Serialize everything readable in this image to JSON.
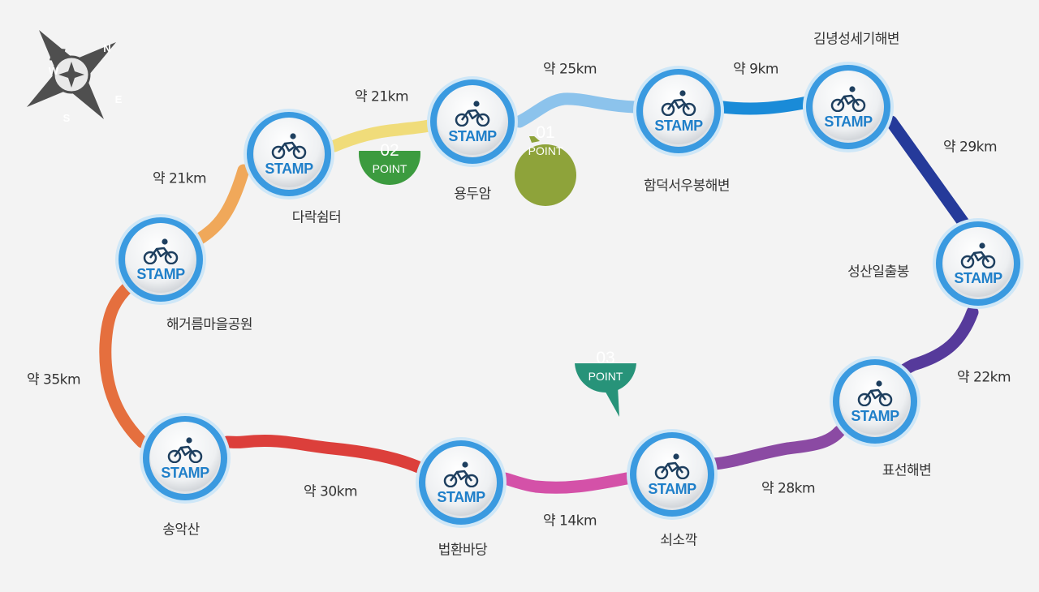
{
  "compass": {
    "letters": [
      "N",
      "E",
      "S",
      "W"
    ],
    "color": "#4f4f4f"
  },
  "stamp_label": "STAMP",
  "stations": [
    {
      "id": "gimnyeong",
      "name": "김녕성세기해변"
    },
    {
      "id": "hamdeok",
      "name": "함덕서우봉해변"
    },
    {
      "id": "yongduam",
      "name": "용두암"
    },
    {
      "id": "darak",
      "name": "다락쉼터"
    },
    {
      "id": "haegeoreum",
      "name": "해거름마을공원"
    },
    {
      "id": "songaksan",
      "name": "송악산"
    },
    {
      "id": "beophwan",
      "name": "법환바당"
    },
    {
      "id": "soesokkak",
      "name": "쇠소깍"
    },
    {
      "id": "pyoseon",
      "name": "표선해변"
    },
    {
      "id": "seongsan",
      "name": "성산일출봉"
    }
  ],
  "segments": [
    {
      "from": "gimnyeong",
      "to": "seongsan",
      "distance": "약 29km",
      "color": "#253a9a"
    },
    {
      "from": "seongsan",
      "to": "pyoseon",
      "distance": "약 22km",
      "color": "#563a9b"
    },
    {
      "from": "pyoseon",
      "to": "soesokkak",
      "distance": "약 28km",
      "color": "#8b4aa3"
    },
    {
      "from": "soesokkak",
      "to": "beophwan",
      "distance": "약 14km",
      "color": "#d451a8"
    },
    {
      "from": "beophwan",
      "to": "songaksan",
      "distance": "약 30km",
      "color": "#dc3f3b"
    },
    {
      "from": "songaksan",
      "to": "haegeoreum",
      "distance": "약 35km",
      "color": "#e56f3e"
    },
    {
      "from": "haegeoreum",
      "to": "darak",
      "distance": "약 21km",
      "color": "#f0a85a"
    },
    {
      "from": "darak",
      "to": "yongduam",
      "distance": "약 21km",
      "color": "#f0dc7a"
    },
    {
      "from": "yongduam",
      "to": "hamdeok",
      "distance": "약 25km",
      "color": "#8cc3ec"
    },
    {
      "from": "hamdeok",
      "to": "gimnyeong",
      "distance": "약 9km",
      "color": "#1a8bd8"
    }
  ],
  "points": [
    {
      "number": "01",
      "word": "POINT",
      "color": "#8ea33a",
      "near": "yongduam"
    },
    {
      "number": "02",
      "word": "POINT",
      "color": "#3c9b3f",
      "near": "darak"
    },
    {
      "number": "03",
      "word": "POINT",
      "color": "#279379",
      "near": "soesokkak"
    }
  ]
}
